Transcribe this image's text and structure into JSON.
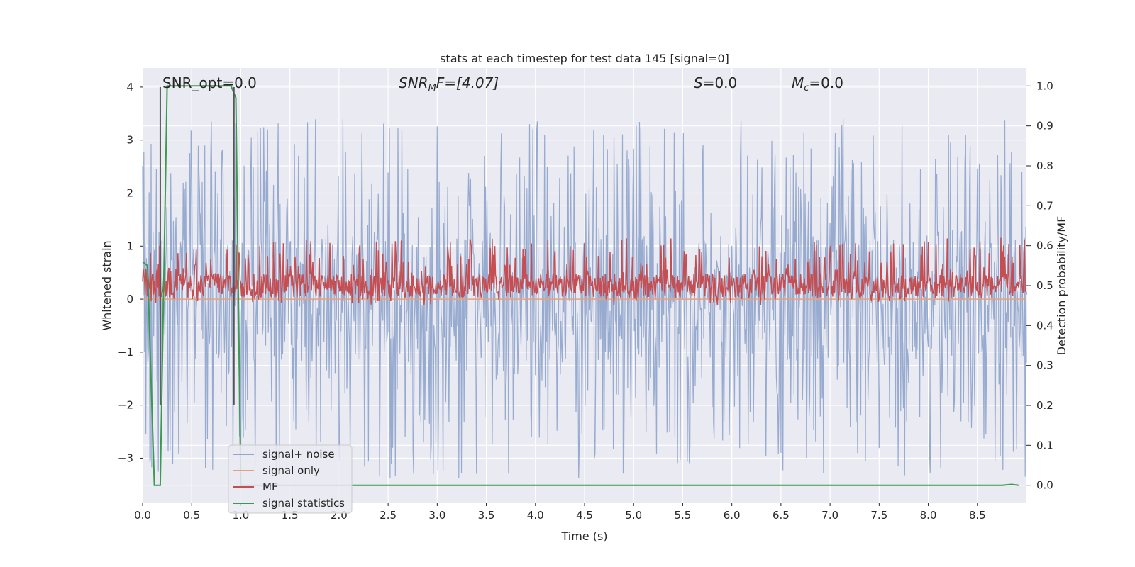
{
  "chart_data": {
    "type": "line",
    "title": "stats at each timestep for test data 145 [signal=0]",
    "xlabel": "Time (s)",
    "ylabel": "Whitened strain",
    "ylabel_right": "Detection probability/MF",
    "xlim": [
      0.0,
      9.0
    ],
    "ylim": [
      -3.85,
      4.36
    ],
    "ylim_right": [
      -0.045,
      1.045
    ],
    "x_ticks": [
      "0.0",
      "0.5",
      "1.0",
      "1.5",
      "2.0",
      "2.5",
      "3.0",
      "3.5",
      "4.0",
      "4.5",
      "5.0",
      "5.5",
      "6.0",
      "6.5",
      "7.0",
      "7.5",
      "8.0",
      "8.5"
    ],
    "y_ticks": [
      "−3",
      "−2",
      "−1",
      "0",
      "1",
      "2",
      "3",
      "4"
    ],
    "y_ticks_right": [
      "0.0",
      "0.1",
      "0.2",
      "0.3",
      "0.4",
      "0.5",
      "0.6",
      "0.7",
      "0.8",
      "0.9",
      "1.0"
    ],
    "grid": true,
    "legend_position": "lower-left",
    "annotations": {
      "snr_opt": "SNR_opt=0.0",
      "snr_mf_prefix": "SNR",
      "snr_mf_sub": "M",
      "snr_mf_suffix": "F=[4.07]",
      "s_var": "S",
      "s_value": "=0.0",
      "mc_var": "M",
      "mc_sub": "c",
      "mc_value": "=0.0"
    },
    "markers_x": [
      0.18,
      0.93
    ],
    "series": [
      {
        "name": "signal+ noise",
        "color": "#92a6cc",
        "axis": "left",
        "envelope": {
          "typical_abs": 1.2,
          "peak_max": 3.4,
          "peak_min": -3.4,
          "samples_per_second": 150
        }
      },
      {
        "name": "signal only",
        "color": "#e9a07a",
        "axis": "left",
        "x": [
          0.0,
          9.0
        ],
        "y": [
          0.0,
          0.0
        ]
      },
      {
        "name": "MF",
        "color": "#c44e52",
        "axis": "right",
        "envelope": {
          "baseline": 0.5,
          "range": [
            0.45,
            0.62
          ],
          "samples_per_second": 150
        }
      },
      {
        "name": "signal statistics",
        "color": "#3c9a50",
        "axis": "right",
        "x": [
          0.0,
          0.05,
          0.12,
          0.18,
          0.25,
          0.3,
          0.6,
          0.9,
          0.95,
          1.0,
          3.0,
          6.0,
          8.0,
          8.75,
          8.85,
          8.92
        ],
        "y": [
          0.56,
          0.55,
          0.0,
          0.0,
          1.0,
          1.0,
          1.0,
          1.0,
          0.97,
          0.0,
          0.0,
          0.0,
          0.0,
          0.0,
          0.002,
          0.0
        ]
      }
    ]
  }
}
